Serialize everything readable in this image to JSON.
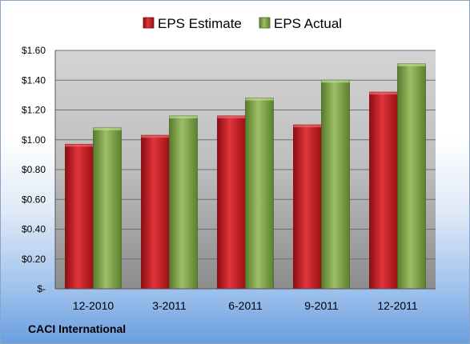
{
  "company": "CACI International",
  "chart_data": {
    "type": "bar",
    "title": "",
    "xlabel": "",
    "ylabel": "",
    "categories": [
      "12-2010",
      "3-2011",
      "6-2011",
      "9-2011",
      "12-2011"
    ],
    "series": [
      {
        "name": "EPS Estimate",
        "values": [
          0.97,
          1.03,
          1.16,
          1.1,
          1.32
        ],
        "color": "#c8141c"
      },
      {
        "name": "EPS Actual",
        "values": [
          1.08,
          1.16,
          1.28,
          1.4,
          1.51
        ],
        "color": "#7fa04a"
      }
    ],
    "ylim": [
      0,
      1.6
    ],
    "yticks": [
      0,
      0.2,
      0.4,
      0.6,
      0.8,
      1.0,
      1.2,
      1.4,
      1.6
    ],
    "ytick_labels": [
      "$-",
      "$0.20",
      "$0.40",
      "$0.60",
      "$0.80",
      "$1.00",
      "$1.20",
      "$1.40",
      "$1.60"
    ],
    "grid": true,
    "legend_position": "top"
  }
}
